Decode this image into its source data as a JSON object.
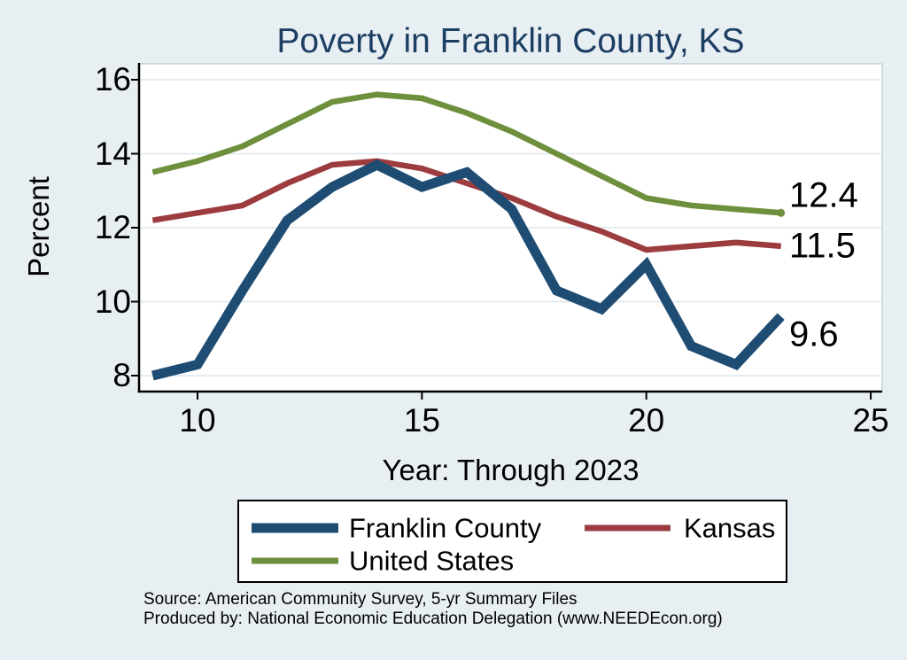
{
  "chart_data": {
    "type": "line",
    "title": "Poverty in Franklin County, KS",
    "xlabel": "Year: Through 2023",
    "ylabel": "Percent",
    "x": [
      9,
      10,
      11,
      12,
      13,
      14,
      15,
      16,
      17,
      18,
      19,
      20,
      21,
      22,
      23
    ],
    "xticks": [
      "10",
      "15",
      "20",
      "25"
    ],
    "xtick_values": [
      10,
      15,
      20,
      25
    ],
    "yticks": [
      "16",
      "14",
      "12",
      "10",
      "8"
    ],
    "ytick_values": [
      16,
      14,
      12,
      10,
      8
    ],
    "xlim": [
      8.7,
      25.3
    ],
    "ylim": [
      7.6,
      16.4
    ],
    "grid": "horizontal",
    "legend_position": "bottom-box",
    "series": [
      {
        "name": "Franklin County",
        "color": "#1e4c73",
        "line_width": 11,
        "values": [
          8.0,
          8.3,
          10.3,
          12.2,
          13.1,
          13.7,
          13.1,
          13.5,
          12.5,
          10.3,
          9.8,
          11.0,
          8.8,
          8.3,
          9.6
        ],
        "end_label": "9.6",
        "end_marker": false
      },
      {
        "name": "Kansas",
        "color": "#9d3c3e",
        "line_width": 6.5,
        "values": [
          12.2,
          12.4,
          12.6,
          13.2,
          13.7,
          13.8,
          13.6,
          13.2,
          12.8,
          12.3,
          11.9,
          11.4,
          11.5,
          11.6,
          11.5
        ],
        "end_label": "11.5",
        "end_marker": false
      },
      {
        "name": "United States",
        "color": "#6e8f3b",
        "line_width": 6.5,
        "values": [
          13.5,
          13.8,
          14.2,
          14.8,
          15.4,
          15.6,
          15.5,
          15.1,
          14.6,
          14.0,
          13.4,
          12.8,
          12.6,
          12.5,
          12.4
        ],
        "end_label": "12.4",
        "end_marker": true
      }
    ]
  },
  "legend": {
    "items": [
      {
        "label": "Franklin County",
        "color": "#1e4c73",
        "thickness": 11
      },
      {
        "label": "Kansas",
        "color": "#9d3c3e",
        "thickness": 7
      },
      {
        "label": "United States",
        "color": "#6e8f3b",
        "thickness": 7
      }
    ]
  },
  "footer": {
    "source_line": "Source: American Community Survey, 5-yr Summary Files",
    "produced_line": "Produced by: National Economic Education Delegation (www.NEEDEcon.org)"
  },
  "colors": {
    "background": "#e8eff3",
    "plot_bg": "#ffffff",
    "grid": "#dce8ee",
    "plot_border": "#c3d3da",
    "axis": "#000000",
    "title": "#1c3e63"
  }
}
